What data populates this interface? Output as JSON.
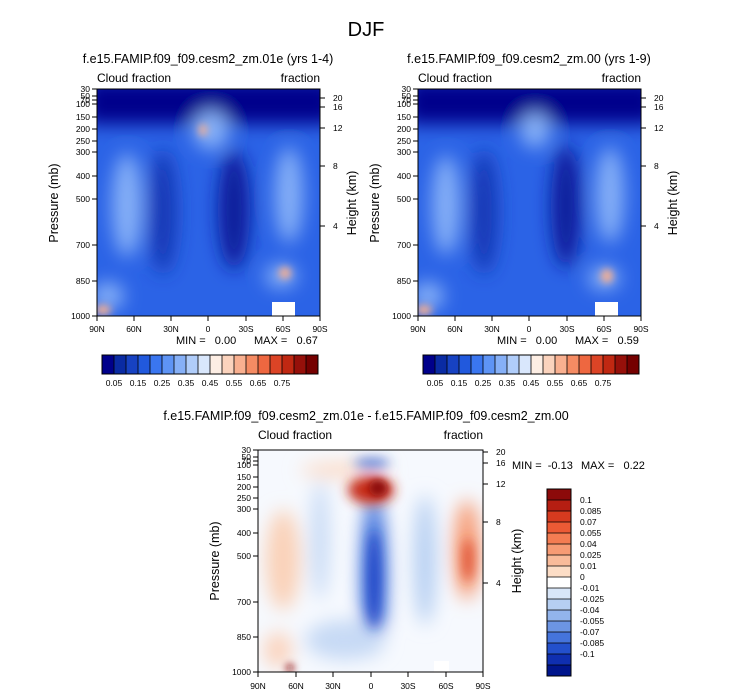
{
  "figure": {
    "title": "DJF"
  },
  "chart_data": [
    {
      "type": "heatmap",
      "title": "f.e15.FAMIP.f09_f09.cesm2_zm.01e (yrs 1-4)",
      "left_label": "Cloud fraction",
      "right_label": "fraction",
      "ylabel": "Pressure (mb)",
      "ylabel_right": "Height (km)",
      "xlim": [
        90,
        -90
      ],
      "ylim_pressure": [
        1000,
        30
      ],
      "x_ticks": [
        "90N",
        "60N",
        "30N",
        "0",
        "30S",
        "60S",
        "90S"
      ],
      "y_ticks": [
        "30",
        "50",
        "70",
        "100",
        "150",
        "200",
        "250",
        "300",
        "400",
        "500",
        "700",
        "850",
        "1000"
      ],
      "height_ticks": [
        "20",
        "16",
        "12",
        "8",
        "4"
      ],
      "min_text": "MIN =   0.00",
      "max_text": "MAX =   0.67",
      "min": 0.0,
      "max": 0.67,
      "colorbar": {
        "labels": [
          "0.05",
          "0.15",
          "0.25",
          "0.35",
          "0.45",
          "0.55",
          "0.65",
          "0.75"
        ],
        "colors": [
          "#00008b",
          "#0a2ba3",
          "#1742c2",
          "#2159dd",
          "#3a76f0",
          "#5e94f5",
          "#86b0f7",
          "#b0cdfa",
          "#d9e7fc",
          "#fdeee4",
          "#fbd3bd",
          "#f9b090",
          "#f58b63",
          "#ee6740",
          "#dc4426",
          "#c02812",
          "#96100a",
          "#750000"
        ]
      }
    },
    {
      "type": "heatmap",
      "title": "f.e15.FAMIP.f09_f09.cesm2_zm.00 (yrs 1-9)",
      "left_label": "Cloud fraction",
      "right_label": "fraction",
      "ylabel": "Pressure (mb)",
      "ylabel_right": "Height (km)",
      "xlim": [
        90,
        -90
      ],
      "ylim_pressure": [
        1000,
        30
      ],
      "x_ticks": [
        "90N",
        "60N",
        "30N",
        "0",
        "30S",
        "60S",
        "90S"
      ],
      "y_ticks": [
        "30",
        "50",
        "70",
        "100",
        "150",
        "200",
        "250",
        "300",
        "400",
        "500",
        "700",
        "850",
        "1000"
      ],
      "height_ticks": [
        "20",
        "16",
        "12",
        "8",
        "4"
      ],
      "min_text": "MIN =   0.00",
      "max_text": "MAX =   0.59",
      "min": 0.0,
      "max": 0.59,
      "colorbar": {
        "labels": [
          "0.05",
          "0.15",
          "0.25",
          "0.35",
          "0.45",
          "0.55",
          "0.65",
          "0.75"
        ],
        "colors": [
          "#00008b",
          "#0a2ba3",
          "#1742c2",
          "#2159dd",
          "#3a76f0",
          "#5e94f5",
          "#86b0f7",
          "#b0cdfa",
          "#d9e7fc",
          "#fdeee4",
          "#fbd3bd",
          "#f9b090",
          "#f58b63",
          "#ee6740",
          "#dc4426",
          "#c02812",
          "#96100a",
          "#750000"
        ]
      }
    },
    {
      "type": "heatmap",
      "title": "f.e15.FAMIP.f09_f09.cesm2_zm.01e - f.e15.FAMIP.f09_f09.cesm2_zm.00",
      "left_label": "Cloud fraction",
      "right_label": "fraction",
      "ylabel": "Pressure (mb)",
      "ylabel_right": "Height (km)",
      "xlim": [
        90,
        -90
      ],
      "ylim_pressure": [
        1000,
        30
      ],
      "x_ticks": [
        "90N",
        "60N",
        "30N",
        "0",
        "30S",
        "60S",
        "90S"
      ],
      "y_ticks": [
        "30",
        "50",
        "70",
        "100",
        "150",
        "200",
        "250",
        "300",
        "400",
        "500",
        "700",
        "850",
        "1000"
      ],
      "height_ticks": [
        "20",
        "16",
        "12",
        "8",
        "4"
      ],
      "min_text": "MIN =  -0.13",
      "max_text": "MAX =   0.22",
      "min": -0.13,
      "max": 0.22,
      "colorbar": {
        "labels": [
          "0.1",
          "0.085",
          "0.07",
          "0.055",
          "0.04",
          "0.025",
          "0.01",
          "0",
          "-0.01",
          "-0.025",
          "-0.04",
          "-0.055",
          "-0.07",
          "-0.085",
          "-0.1"
        ],
        "colors": [
          "#8c0a0a",
          "#b51e12",
          "#d63a1f",
          "#ec5a35",
          "#f47c52",
          "#f79b74",
          "#f9bb9a",
          "#fcddc6",
          "#ffffff",
          "#d8e6f8",
          "#b6cff2",
          "#92b4ec",
          "#6c95e4",
          "#4574dc",
          "#2350cc",
          "#0f2fb0",
          "#00158c"
        ]
      }
    }
  ]
}
